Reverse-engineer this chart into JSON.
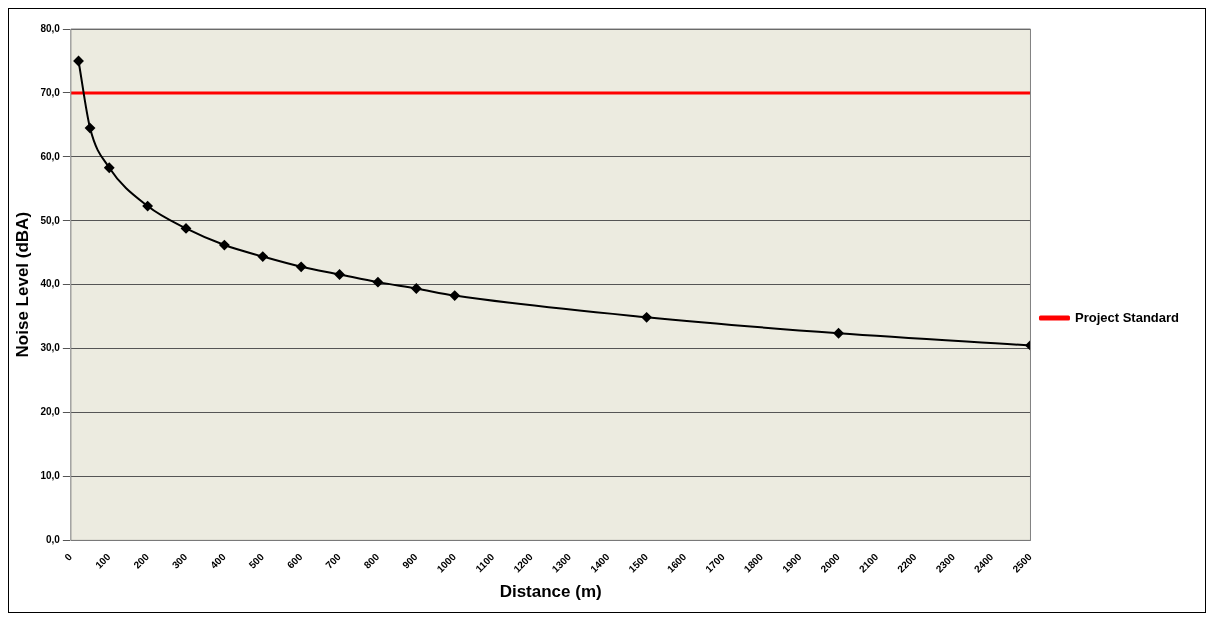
{
  "chart_data": {
    "type": "line",
    "xlabel": "Distance (m)",
    "ylabel": "Noise Level (dBA)",
    "x": [
      20,
      50,
      100,
      200,
      300,
      400,
      500,
      600,
      700,
      800,
      900,
      1000,
      1500,
      2000,
      2500
    ],
    "series": [
      {
        "color": "#000000",
        "values": [
          75,
          64.5,
          58.3,
          52.3,
          48.8,
          46.2,
          44.4,
          42.8,
          41.6,
          40.4,
          39.4,
          38.3,
          34.9,
          32.4,
          30.5
        ],
        "marker": "diamond"
      },
      {
        "name": "Project Standard",
        "color": "#ff0000",
        "x": [
          0,
          2500
        ],
        "values": [
          70,
          70
        ],
        "marker": "none"
      }
    ],
    "xlim": [
      0,
      2500
    ],
    "xticks": [
      0,
      100,
      200,
      300,
      400,
      500,
      600,
      700,
      800,
      900,
      1000,
      1100,
      1200,
      1300,
      1400,
      1500,
      1600,
      1700,
      1800,
      1900,
      2000,
      2100,
      2200,
      2300,
      2400,
      2500
    ],
    "ylim": [
      0,
      80
    ],
    "yticks": [
      {
        "value": 0,
        "label": "0,0"
      },
      {
        "value": 10,
        "label": "10,0"
      },
      {
        "value": 20,
        "label": "20,0"
      },
      {
        "value": 30,
        "label": "30,0"
      },
      {
        "value": 40,
        "label": "40,0"
      },
      {
        "value": 50,
        "label": "50,0"
      },
      {
        "value": 60,
        "label": "60,0"
      },
      {
        "value": 70,
        "label": "70,0"
      },
      {
        "value": 80,
        "label": "80,0"
      }
    ],
    "grid": "y",
    "legend": "right"
  }
}
